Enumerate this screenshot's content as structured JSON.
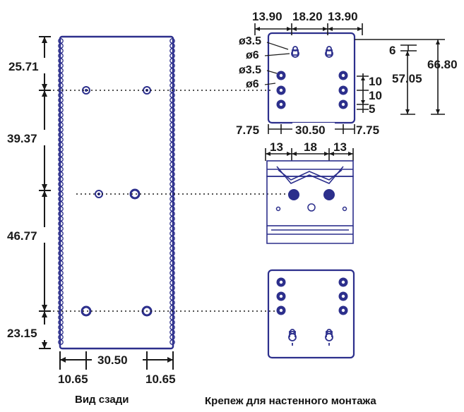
{
  "rear_view": {
    "caption": "Вид сзади",
    "dims": {
      "v1": "25.71",
      "v2": "39.37",
      "v3": "46.77",
      "v4": "23.15",
      "bottom_span": "30.50",
      "bottom_left": "10.65",
      "bottom_right": "10.65"
    }
  },
  "wall_mount": {
    "caption": "Крепеж для настенного монтажа",
    "top_plate": {
      "top_left": "13.90",
      "top_mid": "18.20",
      "top_right": "13.90",
      "dia_slot": "ø3.5",
      "dia_slot_head": "ø6",
      "dia_hole": "ø3.5",
      "dia_hole_head": "ø6",
      "right_small": "6",
      "right_mid": "57.05",
      "right_total": "66.80",
      "pitch1": "10",
      "pitch2": "10",
      "pitch3": "5",
      "bottom_left": "7.75",
      "bottom_mid": "30.50",
      "bottom_right": "7.75"
    },
    "din_clip": {
      "left": "13",
      "mid": "18",
      "right": "13"
    }
  },
  "colors": {
    "outline": "#2c2f8c",
    "dimension": "#1a1a1a"
  }
}
